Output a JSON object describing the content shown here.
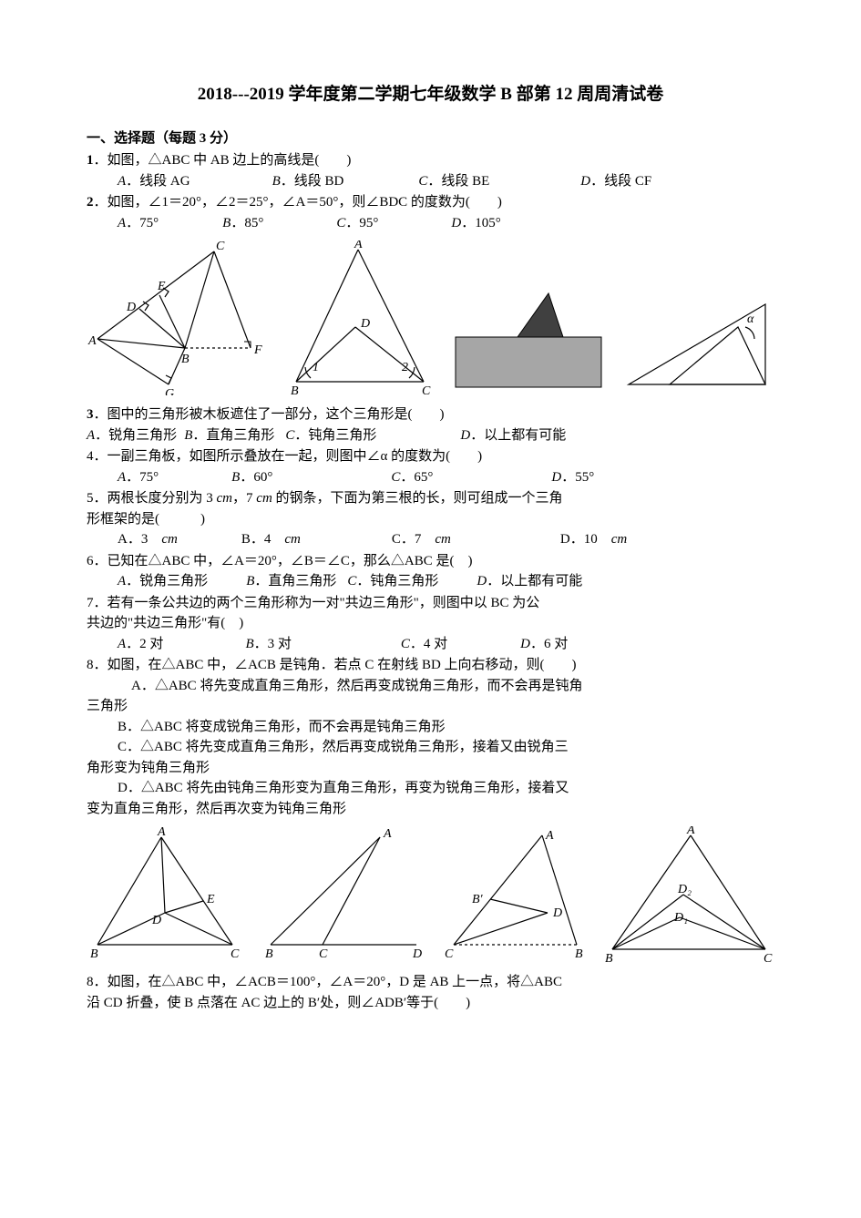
{
  "title": "2018---2019 学年度第二学期七年级数学 B 部第 12 周周清试卷",
  "sectionHead": "一、选择题（每题 3 分）",
  "q1": {
    "num": "1",
    "text": "．如图，△ABC 中 AB 边上的高线是(　　)",
    "opts": [
      "A．线段 AG",
      "B．线段 BD",
      "C．线段 BE",
      "D．线段 CF"
    ],
    "gap": [
      90,
      82,
      100,
      0
    ]
  },
  "q2": {
    "num": "2",
    "text": "．如图，∠1＝20°，∠2＝25°，∠A＝50°，则∠BDC 的度数为(　　)",
    "opts": [
      "A．75°",
      "B．85°",
      "C．95°",
      "D．105°"
    ],
    "gap": [
      70,
      80,
      80,
      0
    ]
  },
  "q3": {
    "num": "3",
    "text": "．图中的三角形被木板遮住了一部分，这个三角形是(　　)",
    "opts": [
      "A．锐角三角形",
      "B．直角三角形",
      "C．钝角三角形",
      "D．以上都有可能"
    ],
    "gap": [
      8,
      12,
      92,
      0
    ]
  },
  "q4": {
    "text": "4．一副三角板，如图所示叠放在一起，则图中∠α 的度数为(　　)",
    "opts": [
      "A．75°",
      "B．60°",
      "C．65°",
      "D．55°"
    ],
    "gap": [
      80,
      130,
      130,
      0
    ]
  },
  "q5": {
    "l1": "5．两根长度分别为 3 ",
    "l1b": "cm",
    "l1c": "，7 ",
    "l1d": "cm",
    "l1e": " 的钢条，下面为第三根的长，则可组成一个三角",
    "l2": "形框架的是(　　　)",
    "opts": [
      "A．3　cm",
      "B．4　cm",
      "C．7　cm",
      "D．10　cm"
    ],
    "gap": [
      70,
      100,
      120,
      0
    ]
  },
  "q6": {
    "text": "6．已知在△ABC 中，∠A＝20°，∠B＝∠C，那么△ABC 是(　)",
    "opts": [
      "A．锐角三角形",
      "B．直角三角形",
      "C．钝角三角形",
      "D．以上都有可能"
    ],
    "gap": [
      42,
      12,
      42,
      0
    ]
  },
  "q7": {
    "l1": "7．若有一条公共边的两个三角形称为一对\"共边三角形\"，则图中以 BC 为公",
    "l2": "共边的\"共边三角形\"有(　)",
    "opts": [
      "A．2 对",
      "B．3 对",
      "C．4 对",
      "D．6 对"
    ],
    "gap": [
      90,
      120,
      80,
      0
    ]
  },
  "q8": {
    "text": "8．如图，在△ABC 中，∠ACB 是钝角．若点 C 在射线 BD 上向右移动，则(　　)",
    "a": "A．△ABC 将先变成直角三角形，然后再变成锐角三角形，而不会再是钝角",
    "a2": "三角形",
    "b": "B．△ABC 将变成锐角三角形，而不会再是钝角三角形",
    "c": "C．△ABC 将先变成直角三角形，然后再变成锐角三角形，接着又由锐角三",
    "c2": "角形变为钝角三角形",
    "d": "D．△ABC 将先由钝角三角形变为直角三角形，再变为锐角三角形，接着又",
    "d2": "变为直角三角形，然后再次变为钝角三角形"
  },
  "q8b": {
    "l1": "8．如图，在△ABC 中，∠ACB＝100°，∠A＝20°，D 是 AB 上一点，将△ABC",
    "l2": "沿 CD 折叠，使 B 点落在 AC 边上的 B′处，则∠ADB′等于(　　)"
  },
  "figs": {
    "f1": {
      "labels": {
        "A": "A",
        "B": "B",
        "C": "C",
        "D": "D",
        "E": "E",
        "F": "F",
        "G": "G"
      }
    },
    "f2": {
      "labels": {
        "A": "A",
        "B": "B",
        "C": "C",
        "D": "D",
        "one": "1",
        "two": "2"
      }
    },
    "f3": {
      "fill1": "#404040",
      "fill2": "#a6a6a6"
    },
    "f4": {
      "alpha": "α"
    },
    "f5": {
      "labels": {
        "A": "A",
        "B": "B",
        "C": "C",
        "D": "D",
        "E": "E"
      }
    },
    "f6": {
      "labels": {
        "A": "A",
        "B": "B",
        "C": "C",
        "D": "D"
      }
    },
    "f7": {
      "labels": {
        "A": "A",
        "B": "B",
        "Bp": "B′",
        "C": "C",
        "D": "D"
      }
    },
    "f8": {
      "labels": {
        "A": "A",
        "B": "B",
        "C": "C",
        "D1": "D₁",
        "D2": "D₂"
      }
    }
  },
  "style": {
    "stroke": "#000000",
    "sw": 1.2,
    "dash": "3,3",
    "font": "italic 14px Times New Roman, serif",
    "fontUp": "14px Times New Roman, serif"
  }
}
